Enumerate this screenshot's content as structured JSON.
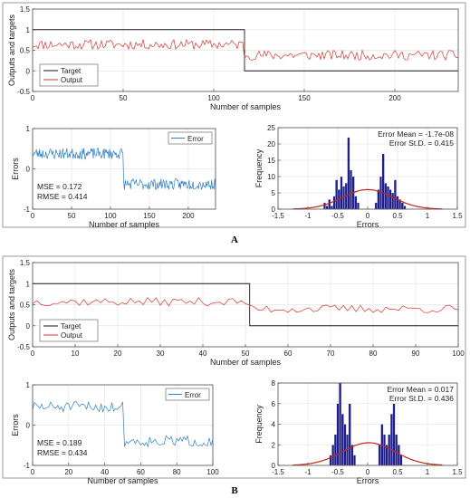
{
  "colors": {
    "target": "#1a1a1a",
    "output": "#d9342b",
    "error": "#2f7fc1",
    "hist_bar": "#1f1f8c",
    "normal_fit": "#c0261b",
    "axes": "#4d4d4d",
    "grid": "#e6e6e6",
    "frame": "#9a9a9a"
  },
  "panels": [
    {
      "caption": "A",
      "top": {
        "xlabel": "Number of samples",
        "ylabel": "Outputs and targets",
        "xlim": [
          0,
          235
        ],
        "ylim": [
          -0.5,
          1.5
        ],
        "xticks": [
          0,
          50,
          100,
          150,
          200
        ],
        "yticks": [
          -0.5,
          0,
          0.5,
          1,
          1.5
        ],
        "yticklabels": [
          "-0.5",
          "0",
          "0.5",
          "1",
          "1.5"
        ],
        "legend": [
          "Target",
          "Output"
        ]
      },
      "error": {
        "xlabel": "Number of samples",
        "ylabel": "Errors",
        "xlim": [
          0,
          235
        ],
        "ylim": [
          -1,
          1
        ],
        "xticks": [
          0,
          50,
          100,
          150,
          200
        ],
        "yticks": [
          -1,
          0,
          1
        ],
        "legend": "Error",
        "mse": "MSE = 0.172",
        "rmse": "RMSE = 0.414"
      },
      "hist": {
        "xlabel": "Errors",
        "ylabel": "Frequency",
        "xlim": [
          -1.5,
          1.5
        ],
        "ylim": [
          0,
          25
        ],
        "xticks": [
          -1.5,
          -1,
          -0.5,
          0,
          0.5,
          1,
          1.5
        ],
        "xticklabels": [
          "-1.5",
          "-1",
          "-0.5",
          "0",
          "0.5",
          "1",
          "1.5"
        ],
        "yticks": [
          0,
          5,
          10,
          15,
          20,
          25
        ],
        "mean": "Error Mean = -1.7e-08",
        "std": "Error St.D. = 0.415"
      }
    },
    {
      "caption": "B",
      "top": {
        "xlabel": "Number of samples",
        "ylabel": "Outputs and targets",
        "xlim": [
          0,
          100
        ],
        "ylim": [
          -0.5,
          1.5
        ],
        "xticks": [
          0,
          10,
          20,
          30,
          40,
          50,
          60,
          70,
          80,
          90,
          100
        ],
        "yticks": [
          -0.5,
          0,
          0.5,
          1,
          1.5
        ],
        "yticklabels": [
          "-0.5",
          "0",
          "0.5",
          "1",
          "1.5"
        ],
        "legend": [
          "Target",
          "Output"
        ]
      },
      "error": {
        "xlabel": "Number of samples",
        "ylabel": "Errors",
        "xlim": [
          0,
          100
        ],
        "ylim": [
          -1,
          1
        ],
        "xticks": [
          0,
          20,
          40,
          60,
          80,
          100
        ],
        "yticks": [
          -1,
          0,
          1
        ],
        "legend": "Error",
        "mse": "MSE = 0.189",
        "rmse": "RMSE = 0.434"
      },
      "hist": {
        "xlabel": "Errors",
        "ylabel": "Frequency",
        "xlim": [
          -1.5,
          1.5
        ],
        "ylim": [
          0,
          8
        ],
        "xticks": [
          -1.5,
          -1,
          -0.5,
          0,
          0.5,
          1,
          1.5
        ],
        "xticklabels": [
          "-1.5",
          "-1",
          "-0.5",
          "0",
          "0.5",
          "1",
          "1.5"
        ],
        "yticks": [
          0,
          2,
          4,
          6,
          8
        ],
        "mean": "Error Mean = 0.017",
        "std": "Error St.D. = 0.436"
      }
    }
  ],
  "chart_data": [
    {
      "type": "line",
      "panel": "A",
      "xlabel": "Number of samples",
      "ylabel": "Outputs and targets",
      "xlim": [
        0,
        235
      ],
      "ylim": [
        -0.5,
        1.5
      ],
      "grid": true,
      "legend_position": "bottom-left",
      "series": [
        {
          "name": "Target",
          "x": [
            0,
            117,
            117.5,
            235
          ],
          "values": [
            1,
            1,
            0,
            0
          ]
        },
        {
          "name": "Output",
          "x": [
            0,
            20,
            40,
            60,
            80,
            100,
            117,
            118,
            140,
            160,
            180,
            200,
            220,
            235
          ],
          "values": [
            0.62,
            0.68,
            0.64,
            0.7,
            0.63,
            0.66,
            0.62,
            0.38,
            0.34,
            0.4,
            0.37,
            0.35,
            0.41,
            0.38
          ]
        }
      ]
    },
    {
      "type": "line",
      "panel": "A",
      "xlabel": "Number of samples",
      "ylabel": "Errors",
      "xlim": [
        0,
        235
      ],
      "ylim": [
        -1,
        1
      ],
      "grid": true,
      "legend_position": "top-right",
      "series": [
        {
          "name": "Error",
          "x": [
            0,
            20,
            40,
            60,
            80,
            100,
            117,
            118,
            140,
            160,
            180,
            200,
            220,
            235
          ],
          "values": [
            0.38,
            0.32,
            0.36,
            0.3,
            0.37,
            0.34,
            0.38,
            -0.38,
            -0.34,
            -0.4,
            -0.37,
            -0.35,
            -0.41,
            -0.38
          ]
        }
      ]
    },
    {
      "type": "bar",
      "panel": "A",
      "xlabel": "Errors",
      "ylabel": "Frequency",
      "xlim": [
        -1.5,
        1.5
      ],
      "ylim": [
        0,
        25
      ],
      "grid": true,
      "categories": [
        -0.72,
        -0.68,
        -0.64,
        -0.6,
        -0.56,
        -0.52,
        -0.48,
        -0.44,
        -0.4,
        -0.36,
        -0.32,
        -0.28,
        -0.24,
        -0.2,
        -0.16,
        0.14,
        0.18,
        0.22,
        0.26,
        0.3,
        0.34,
        0.38,
        0.42,
        0.46,
        0.5,
        0.54,
        0.58,
        0.62
      ],
      "values": [
        2,
        1,
        3,
        1,
        4,
        9,
        6,
        10,
        7,
        8,
        22,
        12,
        10,
        4,
        2,
        2,
        6,
        10,
        17,
        8,
        7,
        6,
        5,
        9,
        4,
        3,
        2,
        1
      ],
      "normal_fit": {
        "mean": 0,
        "std": 0.415,
        "peak": 6
      }
    },
    {
      "type": "line",
      "panel": "B",
      "xlabel": "Number of samples",
      "ylabel": "Outputs and targets",
      "xlim": [
        0,
        100
      ],
      "ylim": [
        -0.5,
        1.5
      ],
      "grid": true,
      "legend_position": "bottom-left",
      "series": [
        {
          "name": "Target",
          "x": [
            0,
            50,
            51,
            100
          ],
          "values": [
            1,
            1,
            0,
            0
          ]
        },
        {
          "name": "Output",
          "x": [
            0,
            10,
            20,
            30,
            40,
            50,
            51,
            60,
            70,
            80,
            90,
            100
          ],
          "values": [
            0.62,
            0.55,
            0.6,
            0.52,
            0.58,
            0.6,
            0.45,
            0.42,
            0.4,
            0.43,
            0.38,
            0.4
          ]
        }
      ]
    },
    {
      "type": "line",
      "panel": "B",
      "xlabel": "Number of samples",
      "ylabel": "Errors",
      "xlim": [
        0,
        100
      ],
      "ylim": [
        -1,
        1
      ],
      "grid": true,
      "legend_position": "top-right",
      "series": [
        {
          "name": "Error",
          "x": [
            0,
            10,
            20,
            30,
            40,
            50,
            51,
            60,
            70,
            80,
            90,
            100
          ],
          "values": [
            0.5,
            0.4,
            0.45,
            0.35,
            0.42,
            0.4,
            -0.45,
            -0.42,
            -0.4,
            -0.43,
            -0.38,
            -0.4
          ]
        }
      ]
    },
    {
      "type": "bar",
      "panel": "B",
      "xlabel": "Errors",
      "ylabel": "Frequency",
      "xlim": [
        -1.5,
        1.5
      ],
      "ylim": [
        0,
        8
      ],
      "grid": true,
      "categories": [
        -0.62,
        -0.58,
        -0.54,
        -0.5,
        -0.46,
        -0.42,
        -0.38,
        -0.34,
        -0.3,
        -0.26,
        -0.22,
        0.2,
        0.24,
        0.28,
        0.32,
        0.36,
        0.4,
        0.44,
        0.48,
        0.52,
        0.56
      ],
      "values": [
        1,
        2,
        3,
        6,
        8,
        5,
        4,
        3,
        6,
        2,
        1,
        2,
        4,
        3,
        2,
        3,
        5,
        6,
        3,
        2,
        1
      ],
      "normal_fit": {
        "mean": 0.017,
        "std": 0.436,
        "peak": 2.2
      }
    }
  ]
}
